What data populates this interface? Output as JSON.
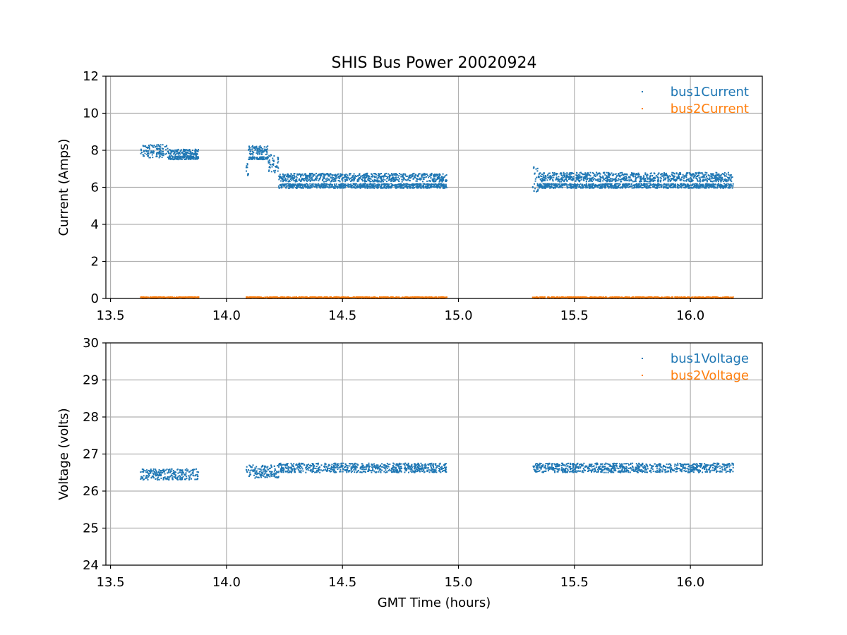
{
  "colors": {
    "series1": "#1f77b4",
    "series2": "#ff7f0e",
    "grid": "#b0b0b0",
    "axes": "#000000"
  },
  "chart_data": [
    {
      "type": "scatter",
      "title": "SHIS Bus Power 20020924",
      "xlabel": "",
      "ylabel": "Current (Amps)",
      "xlim": [
        13.48,
        16.31
      ],
      "ylim": [
        0,
        12
      ],
      "xticks": [
        "13.5",
        "14.0",
        "14.5",
        "15.0",
        "15.5",
        "16.0"
      ],
      "yticks": [
        "0",
        "2",
        "4",
        "6",
        "8",
        "10",
        "12"
      ],
      "grid": true,
      "legend_position": "top-right",
      "series": [
        {
          "name": "bus1Current",
          "color_key": "series1",
          "segments": [
            {
              "x": [
                13.63,
                13.75
              ],
              "bands": [
                [
                  7.6,
                  8.3
                ]
              ]
            },
            {
              "x": [
                13.75,
                13.88
              ],
              "bands": [
                [
                  7.5,
                  7.7
                ],
                [
                  7.75,
                  8.05
                ]
              ]
            },
            {
              "x": [
                14.085,
                14.095
              ],
              "bands": [
                [
                  6.6,
                  7.4
                ]
              ]
            },
            {
              "x": [
                14.095,
                14.18
              ],
              "bands": [
                [
                  7.5,
                  7.65
                ],
                [
                  7.75,
                  8.25
                ]
              ]
            },
            {
              "x": [
                14.18,
                14.225
              ],
              "bands": [
                [
                  6.8,
                  7.8
                ]
              ]
            },
            {
              "x": [
                14.225,
                14.95
              ],
              "bands": [
                [
                  5.95,
                  6.2
                ],
                [
                  6.3,
                  6.75
                ]
              ]
            },
            {
              "x": [
                15.32,
                15.345
              ],
              "bands": [
                [
                  5.75,
                  7.15
                ]
              ]
            },
            {
              "x": [
                15.345,
                16.185
              ],
              "bands": [
                [
                  5.95,
                  6.2
                ],
                [
                  6.3,
                  6.8
                ]
              ]
            }
          ]
        },
        {
          "name": "bus2Current",
          "color_key": "series2",
          "segments": [
            {
              "x": [
                13.63,
                13.88
              ],
              "bands": [
                [
                  0.0,
                  0.08
                ]
              ]
            },
            {
              "x": [
                14.085,
                14.95
              ],
              "bands": [
                [
                  0.0,
                  0.08
                ]
              ]
            },
            {
              "x": [
                15.32,
                16.185
              ],
              "bands": [
                [
                  0.0,
                  0.08
                ]
              ]
            }
          ]
        }
      ]
    },
    {
      "type": "scatter",
      "title": "",
      "xlabel": "GMT Time (hours)",
      "ylabel": "Voltage (volts)",
      "xlim": [
        13.48,
        16.31
      ],
      "ylim": [
        24,
        30
      ],
      "xticks": [
        "13.5",
        "14.0",
        "14.5",
        "15.0",
        "15.5",
        "16.0"
      ],
      "yticks": [
        "24",
        "25",
        "26",
        "27",
        "28",
        "29",
        "30"
      ],
      "grid": true,
      "legend_position": "top-right",
      "series": [
        {
          "name": "bus1Voltage",
          "color_key": "series1",
          "segments": [
            {
              "x": [
                13.63,
                13.88
              ],
              "bands": [
                [
                  26.3,
                  26.6
                ]
              ]
            },
            {
              "x": [
                14.085,
                14.225
              ],
              "bands": [
                [
                  26.35,
                  26.7
                ]
              ]
            },
            {
              "x": [
                14.225,
                14.95
              ],
              "bands": [
                [
                  26.5,
                  26.75
                ]
              ]
            },
            {
              "x": [
                15.32,
                16.185
              ],
              "bands": [
                [
                  26.5,
                  26.75
                ]
              ]
            }
          ]
        },
        {
          "name": "bus2Voltage",
          "color_key": "series2",
          "segments": []
        }
      ]
    }
  ]
}
